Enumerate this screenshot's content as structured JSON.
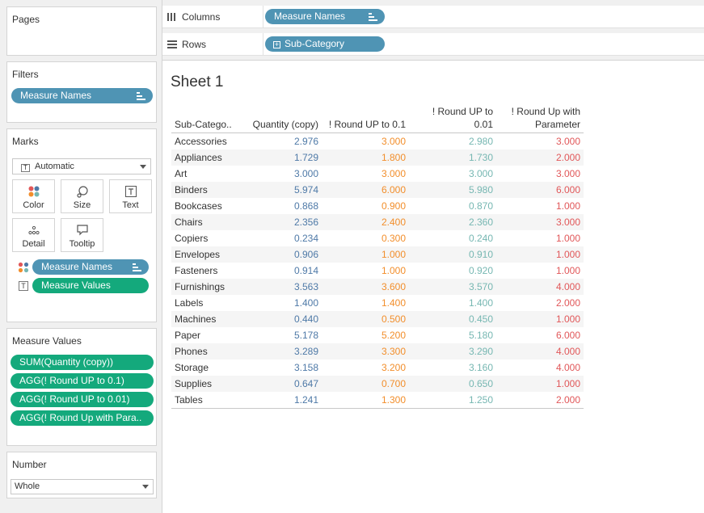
{
  "colors": {
    "blue_pill": "#4f94b4",
    "green_pill": "#14a97c",
    "col1": "#4e79a7",
    "col2": "#f28e2b",
    "col3": "#76b7b2",
    "col4": "#e15759"
  },
  "pages": {
    "title": "Pages"
  },
  "filters": {
    "title": "Filters",
    "pill": "Measure Names"
  },
  "marks": {
    "title": "Marks",
    "type": "Automatic",
    "buttons": {
      "color": "Color",
      "size": "Size",
      "text": "Text",
      "detail": "Detail",
      "tooltip": "Tooltip"
    },
    "pills": {
      "measure_names": "Measure Names",
      "measure_values": "Measure Values"
    }
  },
  "measure_values": {
    "title": "Measure Values",
    "pills": [
      "SUM(Quantity (copy))",
      "AGG(! Round UP to 0.1)",
      "AGG(! Round UP to 0.01)",
      "AGG(! Round Up with Para.."
    ]
  },
  "number": {
    "title": "Number",
    "value": "Whole"
  },
  "shelves": {
    "columns": {
      "label": "Columns",
      "pill": "Measure Names"
    },
    "rows": {
      "label": "Rows",
      "pill": "Sub-Category"
    }
  },
  "sheet": {
    "title": "Sheet 1"
  },
  "table": {
    "headers": {
      "subcategory": "Sub-Catego..",
      "quantity": "Quantity (copy)",
      "round01_label": "! Round UP to 0.1",
      "round001_line1": "! Round UP to",
      "round001_line2": "0.01",
      "roundparam_line1": "! Round Up with",
      "roundparam_line2": "Parameter"
    },
    "rows": [
      {
        "name": "Accessories",
        "q": "2.976",
        "r1": "3.000",
        "r2": "2.980",
        "r3": "3.000"
      },
      {
        "name": "Appliances",
        "q": "1.729",
        "r1": "1.800",
        "r2": "1.730",
        "r3": "2.000"
      },
      {
        "name": "Art",
        "q": "3.000",
        "r1": "3.000",
        "r2": "3.000",
        "r3": "3.000"
      },
      {
        "name": "Binders",
        "q": "5.974",
        "r1": "6.000",
        "r2": "5.980",
        "r3": "6.000"
      },
      {
        "name": "Bookcases",
        "q": "0.868",
        "r1": "0.900",
        "r2": "0.870",
        "r3": "1.000"
      },
      {
        "name": "Chairs",
        "q": "2.356",
        "r1": "2.400",
        "r2": "2.360",
        "r3": "3.000"
      },
      {
        "name": "Copiers",
        "q": "0.234",
        "r1": "0.300",
        "r2": "0.240",
        "r3": "1.000"
      },
      {
        "name": "Envelopes",
        "q": "0.906",
        "r1": "1.000",
        "r2": "0.910",
        "r3": "1.000"
      },
      {
        "name": "Fasteners",
        "q": "0.914",
        "r1": "1.000",
        "r2": "0.920",
        "r3": "1.000"
      },
      {
        "name": "Furnishings",
        "q": "3.563",
        "r1": "3.600",
        "r2": "3.570",
        "r3": "4.000"
      },
      {
        "name": "Labels",
        "q": "1.400",
        "r1": "1.400",
        "r2": "1.400",
        "r3": "2.000"
      },
      {
        "name": "Machines",
        "q": "0.440",
        "r1": "0.500",
        "r2": "0.450",
        "r3": "1.000"
      },
      {
        "name": "Paper",
        "q": "5.178",
        "r1": "5.200",
        "r2": "5.180",
        "r3": "6.000"
      },
      {
        "name": "Phones",
        "q": "3.289",
        "r1": "3.300",
        "r2": "3.290",
        "r3": "4.000"
      },
      {
        "name": "Storage",
        "q": "3.158",
        "r1": "3.200",
        "r2": "3.160",
        "r3": "4.000"
      },
      {
        "name": "Supplies",
        "q": "0.647",
        "r1": "0.700",
        "r2": "0.650",
        "r3": "1.000"
      },
      {
        "name": "Tables",
        "q": "1.241",
        "r1": "1.300",
        "r2": "1.250",
        "r3": "2.000"
      }
    ]
  }
}
